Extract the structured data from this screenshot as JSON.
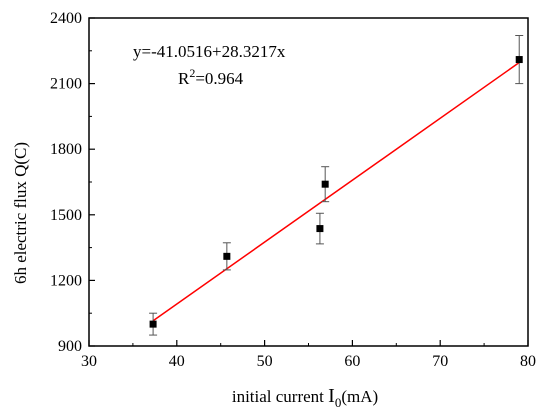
{
  "chart_data": {
    "type": "scatter",
    "title": "",
    "xlabel": "initial current I0(mA)",
    "ylabel": "6h electric flux Q(C)",
    "xlim": [
      30,
      80
    ],
    "ylim": [
      900,
      2400
    ],
    "xticks": [
      30,
      40,
      50,
      60,
      70,
      80
    ],
    "yticks": [
      900,
      1200,
      1500,
      1800,
      2100,
      2400
    ],
    "grid": false,
    "legend": "none",
    "series": [
      {
        "points": [
          {
            "x": 37.3,
            "y": 1000,
            "err": 50
          },
          {
            "x": 45.7,
            "y": 1310,
            "err": 62
          },
          {
            "x": 56.3,
            "y": 1437,
            "err": 70
          },
          {
            "x": 56.9,
            "y": 1640,
            "err": 80
          },
          {
            "x": 79.0,
            "y": 2210,
            "err": 110
          }
        ],
        "marker_color": "#000000"
      }
    ],
    "fit": {
      "intercept": -41.0516,
      "slope": 28.3217,
      "x_range": [
        37.3,
        79.0
      ],
      "color": "#ff0000"
    },
    "annotations": {
      "equation": "y=-41.0516+28.3217x",
      "r2_prefix": "R",
      "r2_sup": "2",
      "r2_value": "=0.964"
    },
    "xlabel_parts": {
      "prefix": "initial current ",
      "symbol": "I",
      "sub": "0",
      "suffix": "(mA)"
    }
  }
}
